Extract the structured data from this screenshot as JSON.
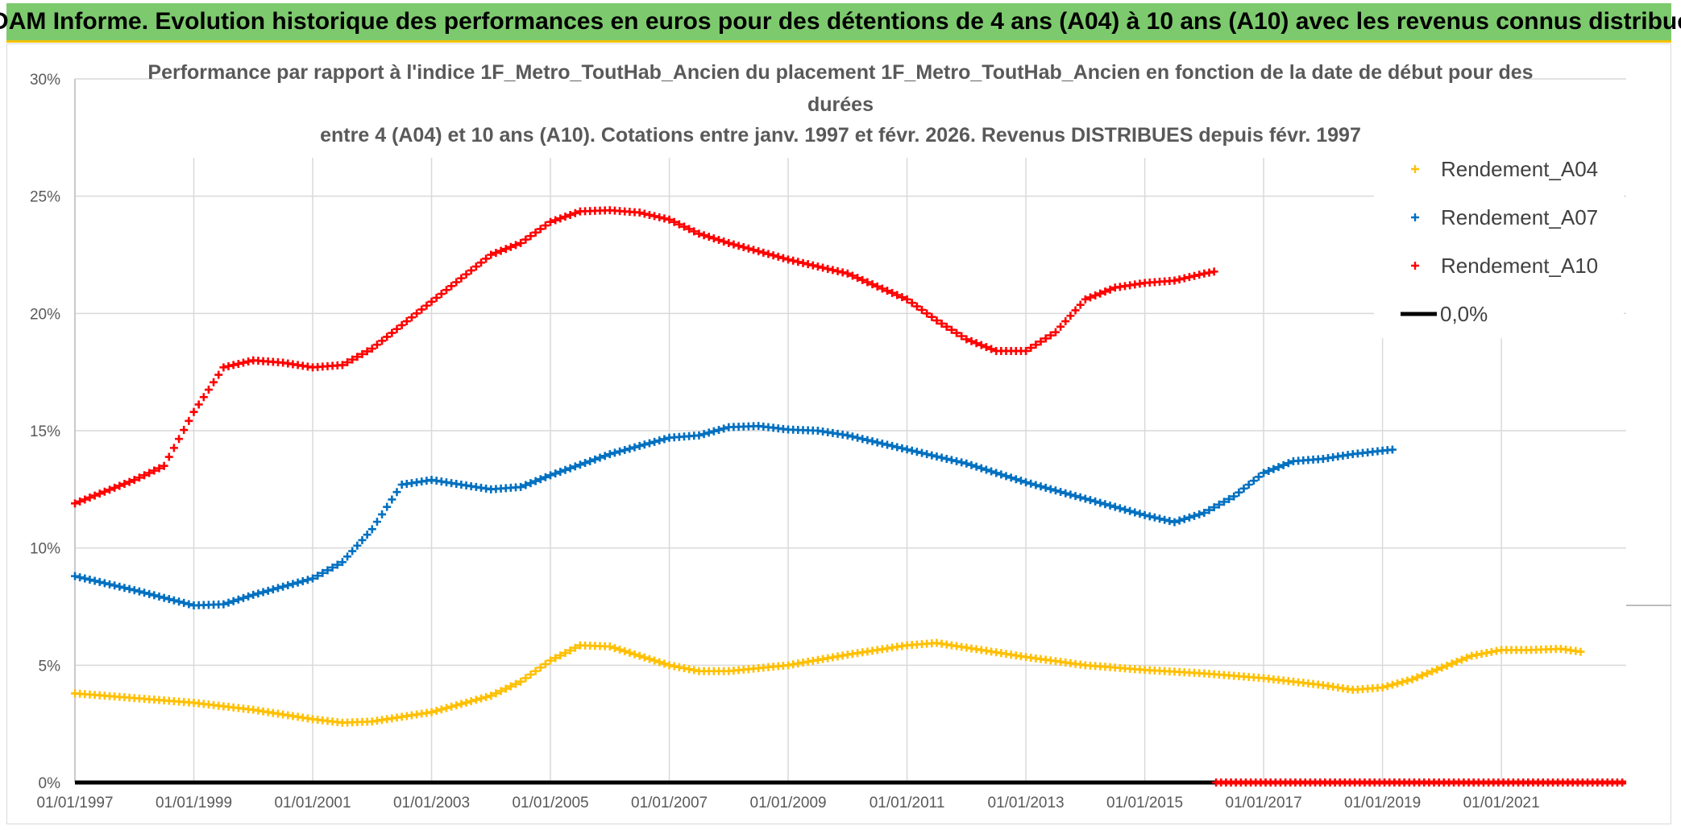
{
  "banner": "ADAM Informe. Evolution historique des performances en euros pour des détentions de 4 ans (A04) à 10 ans (A10) avec les revenus connus distribués",
  "chart_data": {
    "type": "scatter",
    "title_lines": [
      "Performance par rapport à l'indice 1F_Metro_ToutHab_Ancien  du placement 1F_Metro_ToutHab_Ancien en fonction de la date de début pour des",
      "durées",
      "entre 4 (A04) et 10 ans (A10). Cotations entre janv. 1997 et févr. 2026. Revenus DISTRIBUES depuis févr. 1997"
    ],
    "xlim": [
      1997.0,
      2023.1
    ],
    "ylim": [
      0,
      30
    ],
    "x_ticks": [
      "01/01/1997",
      "01/01/1999",
      "01/01/2001",
      "01/01/2003",
      "01/01/2005",
      "01/01/2007",
      "01/01/2009",
      "01/01/2011",
      "01/01/2013",
      "01/01/2015",
      "01/01/2017",
      "01/01/2019",
      "01/01/2021"
    ],
    "x_tick_values": [
      1997,
      1999,
      2001,
      2003,
      2005,
      2007,
      2009,
      2011,
      2013,
      2015,
      2017,
      2019,
      2021
    ],
    "y_ticks": [
      "0%",
      "5%",
      "10%",
      "15%",
      "20%",
      "25%",
      "30%"
    ],
    "y_tick_values": [
      0,
      5,
      10,
      15,
      20,
      25,
      30
    ],
    "grid": true,
    "legend_position": "top-right",
    "series": [
      {
        "name": "Rendement_A04",
        "color": "#ffc000",
        "x": [
          1997.0,
          1998.0,
          1999.0,
          2000.0,
          2001.0,
          2001.5,
          2002.0,
          2003.0,
          2004.0,
          2004.5,
          2005.0,
          2005.5,
          2006.0,
          2006.5,
          2007.0,
          2007.5,
          2008.0,
          2009.0,
          2010.0,
          2011.0,
          2011.5,
          2012.0,
          2013.0,
          2014.0,
          2015.0,
          2016.0,
          2017.0,
          2018.0,
          2018.5,
          2019.0,
          2019.5,
          2020.0,
          2020.5,
          2021.0,
          2021.5,
          2022.0,
          2022.4
        ],
        "y": [
          3.8,
          3.6,
          3.4,
          3.1,
          2.7,
          2.55,
          2.6,
          3.0,
          3.7,
          4.3,
          5.2,
          5.85,
          5.8,
          5.4,
          5.0,
          4.75,
          4.75,
          5.0,
          5.45,
          5.85,
          5.95,
          5.75,
          5.35,
          5.0,
          4.8,
          4.65,
          4.45,
          4.15,
          3.95,
          4.05,
          4.4,
          4.9,
          5.4,
          5.65,
          5.65,
          5.7,
          5.55
        ]
      },
      {
        "name": "Rendement_A07",
        "color": "#0070c0",
        "x": [
          1997.0,
          1998.0,
          1999.0,
          1999.5,
          2000.0,
          2001.0,
          2001.5,
          2002.0,
          2002.5,
          2003.0,
          2004.0,
          2004.5,
          2005.0,
          2006.0,
          2007.0,
          2007.5,
          2008.0,
          2008.5,
          2009.0,
          2009.5,
          2010.0,
          2011.0,
          2012.0,
          2013.0,
          2014.0,
          2015.0,
          2015.5,
          2016.0,
          2016.5,
          2017.0,
          2017.5,
          2018.0,
          2018.5,
          2019.0,
          2019.2
        ],
        "y": [
          8.8,
          8.2,
          7.55,
          7.6,
          8.0,
          8.7,
          9.4,
          10.8,
          12.7,
          12.9,
          12.5,
          12.6,
          13.1,
          14.0,
          14.7,
          14.8,
          15.15,
          15.2,
          15.05,
          15.0,
          14.8,
          14.2,
          13.6,
          12.8,
          12.1,
          11.4,
          11.1,
          11.5,
          12.2,
          13.2,
          13.7,
          13.8,
          14.0,
          14.15,
          14.2
        ]
      },
      {
        "name": "Rendement_A10",
        "color": "#ff0000",
        "x": [
          1997.0,
          1997.5,
          1998.0,
          1998.5,
          1999.0,
          1999.5,
          2000.0,
          2000.5,
          2001.0,
          2001.5,
          2002.0,
          2002.5,
          2003.0,
          2003.5,
          2004.0,
          2004.5,
          2005.0,
          2005.5,
          2006.0,
          2006.5,
          2007.0,
          2007.5,
          2008.0,
          2009.0,
          2010.0,
          2011.0,
          2011.5,
          2012.0,
          2012.5,
          2013.0,
          2013.5,
          2014.0,
          2014.5,
          2015.0,
          2015.5,
          2016.0,
          2016.2
        ],
        "y": [
          11.9,
          12.4,
          12.9,
          13.5,
          15.8,
          17.7,
          18.0,
          17.9,
          17.7,
          17.8,
          18.5,
          19.5,
          20.5,
          21.5,
          22.5,
          23.0,
          23.9,
          24.35,
          24.4,
          24.3,
          24.0,
          23.4,
          23.0,
          22.3,
          21.7,
          20.6,
          19.7,
          18.9,
          18.4,
          18.4,
          19.2,
          20.6,
          21.1,
          21.3,
          21.4,
          21.7,
          21.8
        ]
      },
      {
        "name": "0,0%",
        "color": "#000000",
        "x": [
          1997.0,
          2016.2
        ],
        "y": [
          0,
          0
        ]
      }
    ],
    "zero_markers_red": {
      "x_start": 2016.2,
      "x_end": 2023.1,
      "y": 0
    }
  }
}
